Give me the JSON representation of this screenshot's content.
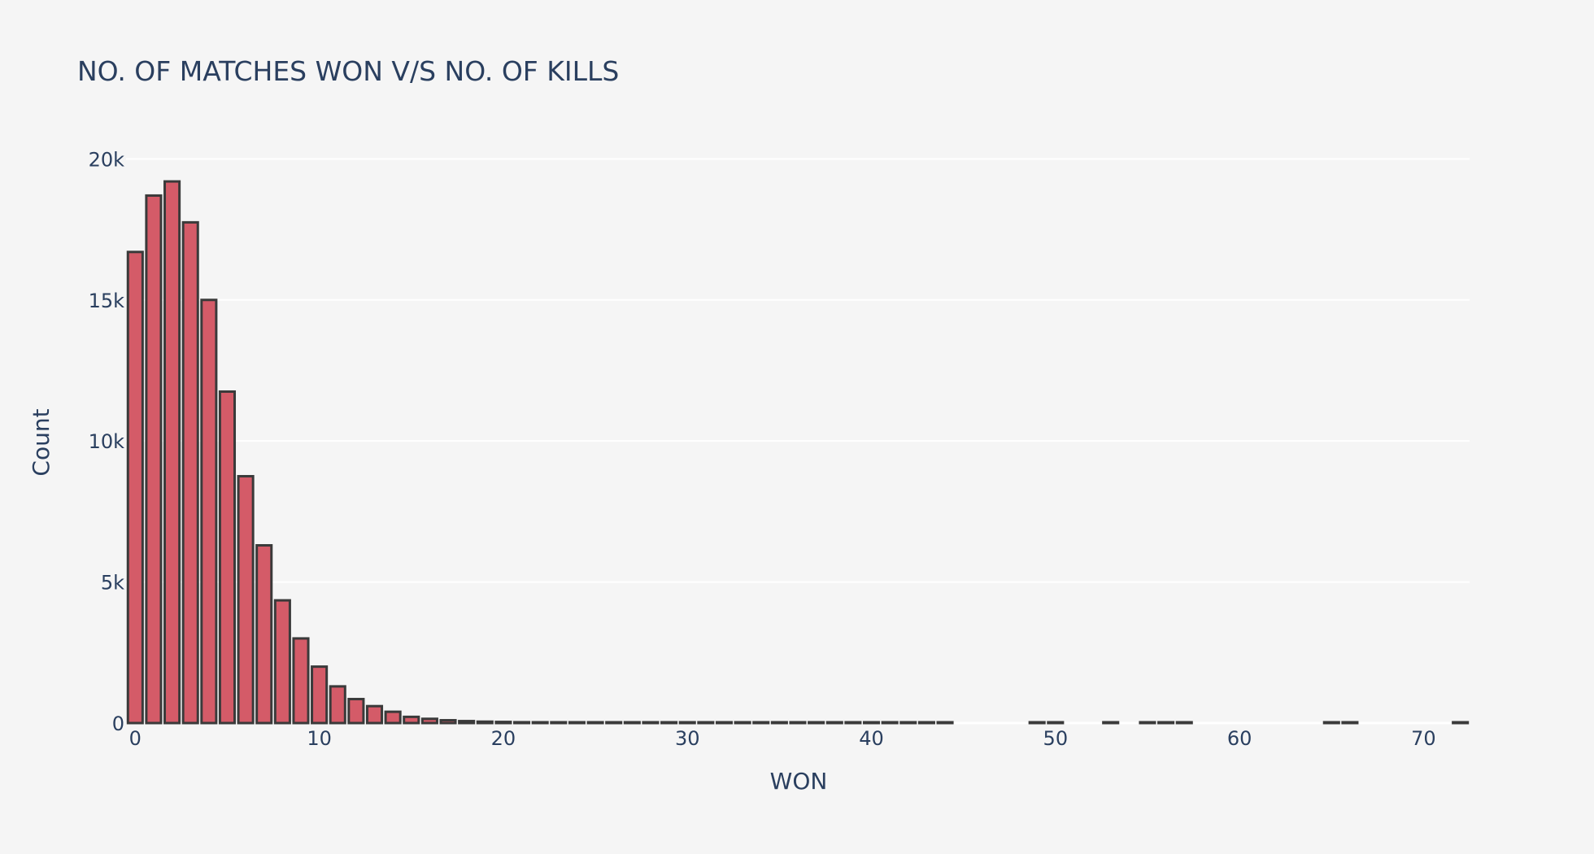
{
  "chart_data": {
    "type": "bar",
    "title": "NO. OF MATCHES WON V/S NO. OF KILLS",
    "xlabel": "WON",
    "ylabel": "Count",
    "xlim": [
      -0.5,
      72.5
    ],
    "ylim": [
      0,
      20500
    ],
    "xticks": [
      0,
      10,
      20,
      30,
      40,
      50,
      60,
      70
    ],
    "yticks": [
      {
        "value": 0,
        "label": "0"
      },
      {
        "value": 5000,
        "label": "5k"
      },
      {
        "value": 10000,
        "label": "10k"
      },
      {
        "value": 15000,
        "label": "15k"
      },
      {
        "value": 20000,
        "label": "20k"
      }
    ],
    "grid": true,
    "colors": {
      "background": "#f5f5f5",
      "bar_fill": "#d45b68",
      "bar_outline": "#3a3a3a",
      "grid": "#ffffff",
      "text": "#2a3f5f"
    },
    "x": [
      0,
      1,
      2,
      3,
      4,
      5,
      6,
      7,
      8,
      9,
      10,
      11,
      12,
      13,
      14,
      15,
      16,
      17,
      18,
      19,
      20,
      21,
      22,
      23,
      24,
      25,
      26,
      27,
      28,
      29,
      30,
      31,
      32,
      33,
      34,
      35,
      36,
      37,
      38,
      39,
      40,
      41,
      42,
      43,
      44,
      49,
      50,
      53,
      55,
      56,
      57,
      65,
      66,
      72
    ],
    "values": [
      16700,
      18700,
      19200,
      17750,
      15000,
      11750,
      8750,
      6300,
      4350,
      3000,
      2000,
      1300,
      850,
      600,
      400,
      220,
      150,
      100,
      70,
      50,
      40,
      30,
      25,
      20,
      15,
      12,
      10,
      9,
      8,
      7,
      6,
      5,
      5,
      4,
      4,
      3,
      3,
      3,
      2,
      2,
      2,
      2,
      2,
      1,
      1,
      1,
      1,
      1,
      1,
      1,
      1,
      1,
      1,
      1
    ]
  }
}
